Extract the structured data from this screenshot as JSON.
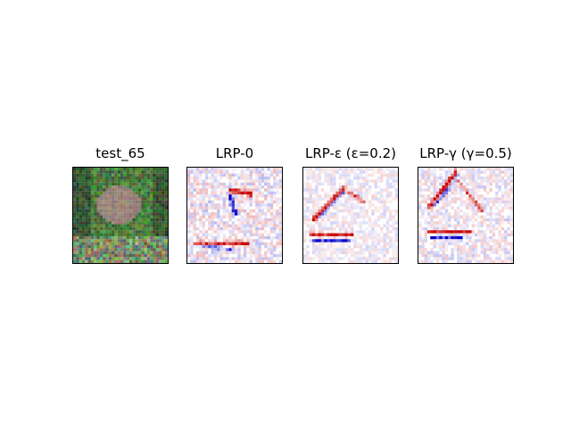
{
  "panels": [
    {
      "title": "test_65",
      "kind": "photo"
    },
    {
      "title": "LRP-0",
      "kind": "heatmap"
    },
    {
      "title": "LRP-ε (ε=0.2)",
      "kind": "heatmap"
    },
    {
      "title": "LRP-γ (γ=0.5)",
      "kind": "heatmap"
    }
  ],
  "colors": {
    "positive": "#cc0000",
    "negative": "#0000cc",
    "background": "#ffffff",
    "photo_dark": "#2d4a2a",
    "photo_green": "#5f8d4e",
    "photo_bird": "#8a7a70"
  }
}
